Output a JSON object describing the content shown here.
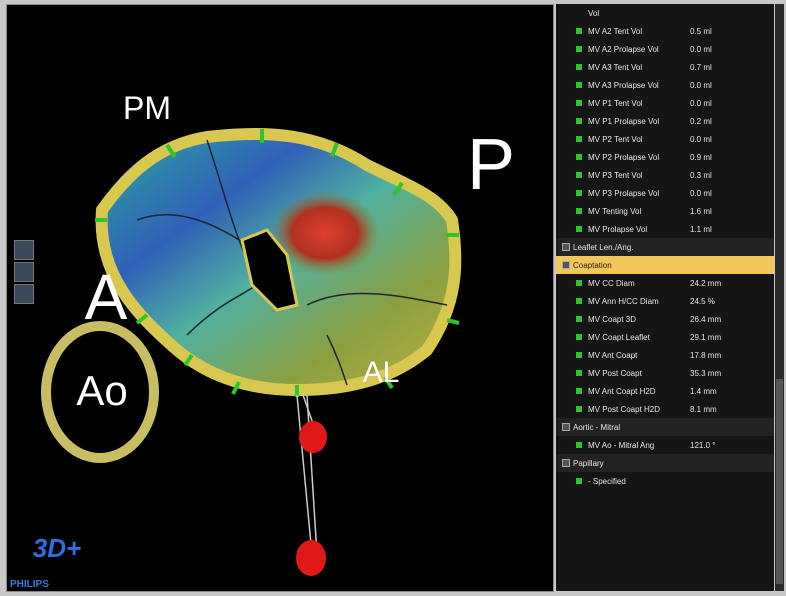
{
  "viewport": {
    "labels": {
      "pm": "PM",
      "p": "P",
      "a": "A",
      "ao": "Ao",
      "al": "AL"
    },
    "logo": "3D+",
    "brand": "PHILIPS"
  },
  "panel": {
    "continuation": "Vol",
    "items": [
      {
        "label": "MV A2 Tent Vol",
        "value": "0.5 ml"
      },
      {
        "label": "MV A2 Prolapse Vol",
        "value": "0.0 ml"
      },
      {
        "label": "MV A3 Tent Vol",
        "value": "0.7 ml"
      },
      {
        "label": "MV A3 Prolapse Vol",
        "value": "0.0 ml"
      },
      {
        "label": "MV P1 Tent Vol",
        "value": "0.0 ml"
      },
      {
        "label": "MV P1 Prolapse Vol",
        "value": "0.2 ml"
      },
      {
        "label": "MV P2 Tent Vol",
        "value": "0.0 ml"
      },
      {
        "label": "MV P2 Prolapse Vol",
        "value": "0.9 ml"
      },
      {
        "label": "MV P3 Tent Vol",
        "value": "0.3 ml"
      },
      {
        "label": "MV P3 Prolapse Vol",
        "value": "0.0 ml"
      },
      {
        "label": "MV Tenting Vol",
        "value": "1.6 ml"
      },
      {
        "label": "MV Prolapse Vol",
        "value": "1.1 ml"
      }
    ],
    "sections": [
      {
        "title": "Leaflet Len./Ang.",
        "items": []
      },
      {
        "title": "Coaptation",
        "selected": true,
        "items": [
          {
            "label": "MV CC Diam",
            "value": "24.2 mm"
          },
          {
            "label": "MV Ann H/CC Diam",
            "value": "24.5 %"
          },
          {
            "label": "MV Coapt 3D",
            "value": "26.4 mm"
          },
          {
            "label": "MV Coapt Leaflet",
            "value": "29.1 mm"
          },
          {
            "label": "MV Ant Coapt",
            "value": "17.8 mm"
          },
          {
            "label": "MV Post Coapt",
            "value": "35.3 mm"
          },
          {
            "label": "MV Ant Coapt H2D",
            "value": "1.4 mm"
          },
          {
            "label": "MV Post Coapt H2D",
            "value": "8.1 mm"
          }
        ]
      },
      {
        "title": "Aortic - Mitral",
        "items": [
          {
            "label": "MV Ao - Mitral Ang",
            "value": "121.0 °"
          }
        ]
      },
      {
        "title": "Papillary",
        "items": [
          {
            "label": "- Specified"
          }
        ]
      }
    ]
  }
}
